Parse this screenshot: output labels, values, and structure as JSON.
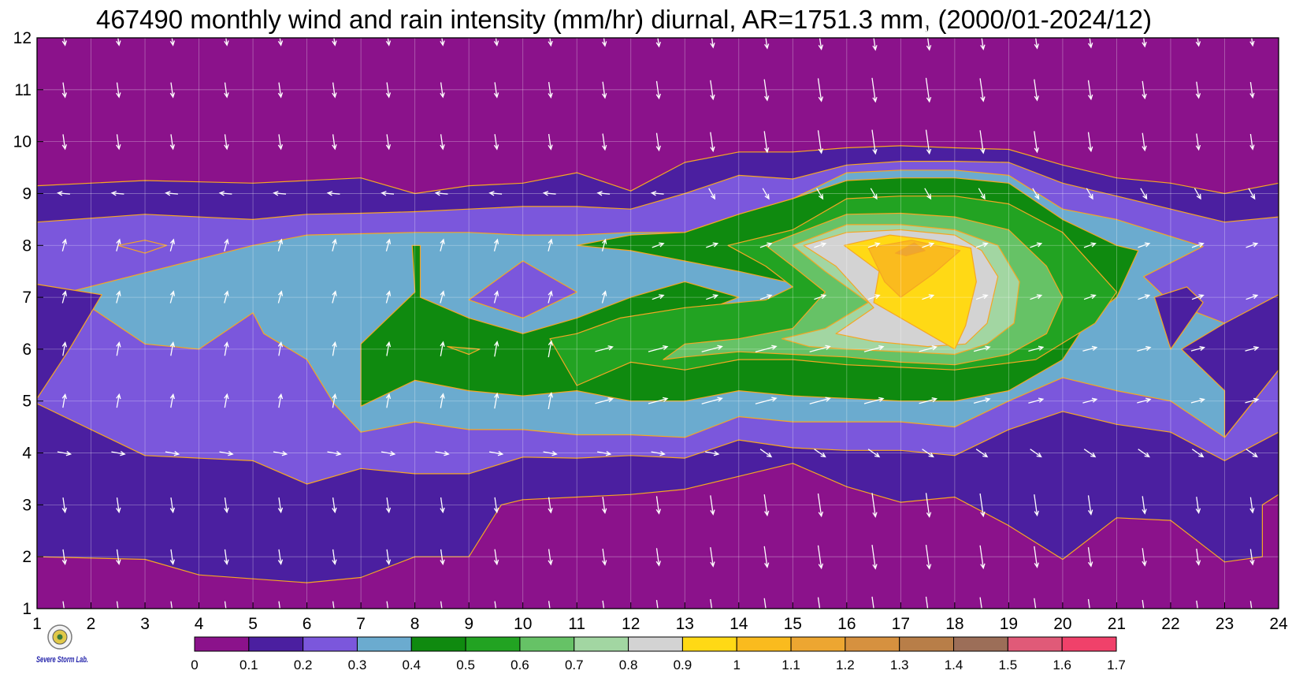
{
  "chart_data": {
    "type": "heatmap",
    "title": "467490 monthly wind and rain intensity (mm/hr) diurnal, AR=1751.3 mm, (2000/01-2024/12)",
    "x_label": "",
    "y_label": "",
    "x_range": [
      1,
      24
    ],
    "y_range": [
      1,
      12
    ],
    "x_ticks": [
      "1",
      "2",
      "3",
      "4",
      "5",
      "6",
      "7",
      "8",
      "9",
      "10",
      "11",
      "12",
      "13",
      "14",
      "15",
      "16",
      "17",
      "18",
      "19",
      "20",
      "21",
      "22",
      "23",
      "24"
    ],
    "y_ticks": [
      "1",
      "2",
      "3",
      "4",
      "5",
      "6",
      "7",
      "8",
      "9",
      "10",
      "11",
      "12"
    ],
    "grid": true,
    "colorbar": {
      "levels": [
        "0",
        "0.1",
        "0.2",
        "0.3",
        "0.4",
        "0.5",
        "0.6",
        "0.7",
        "0.8",
        "0.9",
        "1",
        "1.1",
        "1.2",
        "1.3",
        "1.4",
        "1.5",
        "1.6",
        "1.7"
      ],
      "colors": [
        "#8B128B",
        "#4B1FA0",
        "#7B57DC",
        "#6BABCF",
        "#0F8A0F",
        "#22A322",
        "#66C266",
        "#A2D6A2",
        "#D3D3D3",
        "#FFD915",
        "#FABB1E",
        "#EDA631",
        "#D6913F",
        "#B87E48",
        "#9C6E58",
        "#E05A78",
        "#F0416A",
        "#D9283D"
      ],
      "position": "bottom"
    },
    "contour_line_color": "#F5A623",
    "arrow_color": "#ffffff"
  },
  "logo": {
    "name": "Severe Storm Lab."
  }
}
